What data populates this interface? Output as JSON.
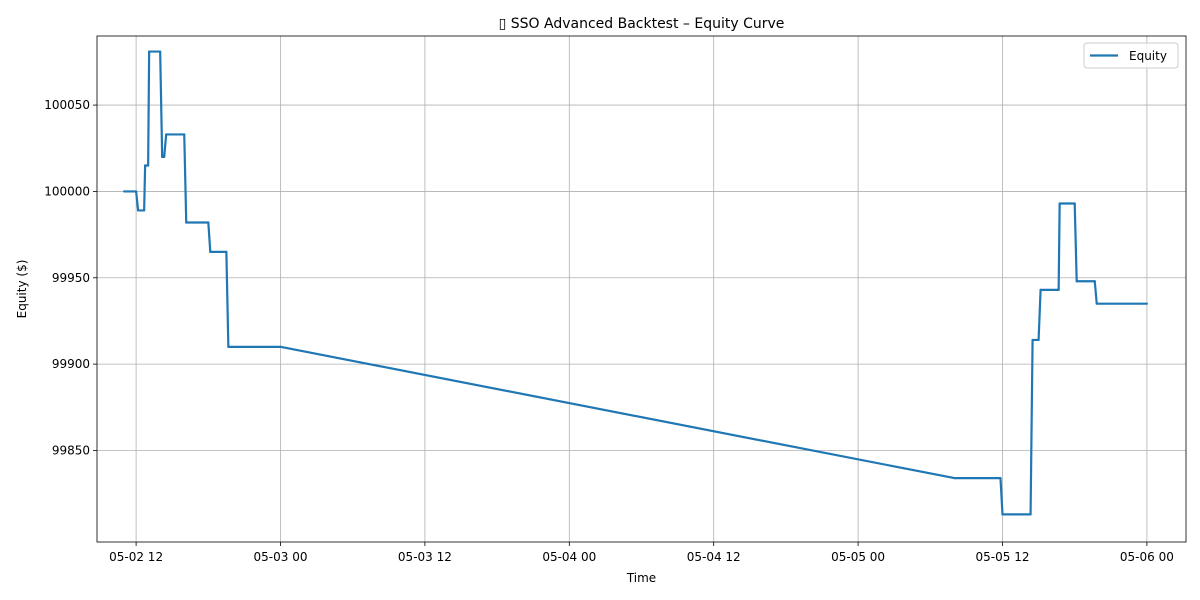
{
  "chart_data": {
    "type": "line",
    "title": "▯ SSO Advanced Backtest – Equity Curve",
    "xlabel": "Time",
    "ylabel": "Equity ($)",
    "grid": true,
    "legend_position": "top-right",
    "xlim": [
      "2025-05-02 08:45",
      "2025-05-06 03:15"
    ],
    "ylim": [
      99797,
      100090
    ],
    "x_ticks": [
      {
        "value": "2025-05-02 12:00",
        "label": "05-02 12"
      },
      {
        "value": "2025-05-03 00:00",
        "label": "05-03 00"
      },
      {
        "value": "2025-05-03 12:00",
        "label": "05-03 12"
      },
      {
        "value": "2025-05-04 00:00",
        "label": "05-04 00"
      },
      {
        "value": "2025-05-04 12:00",
        "label": "05-04 12"
      },
      {
        "value": "2025-05-05 00:00",
        "label": "05-05 00"
      },
      {
        "value": "2025-05-05 12:00",
        "label": "05-05 12"
      },
      {
        "value": "2025-05-06 00:00",
        "label": "05-06 00"
      }
    ],
    "y_ticks": [
      {
        "value": 99850,
        "label": "99850"
      },
      {
        "value": 99900,
        "label": "99900"
      },
      {
        "value": 99950,
        "label": "99950"
      },
      {
        "value": 100000,
        "label": "100000"
      },
      {
        "value": 100050,
        "label": "100050"
      }
    ],
    "series": [
      {
        "name": "Equity",
        "color": "#1f77b4",
        "points": [
          {
            "x": "2025-05-02 11:00",
            "y": 100000
          },
          {
            "x": "2025-05-02 12:00",
            "y": 100000
          },
          {
            "x": "2025-05-02 12:10",
            "y": 99989
          },
          {
            "x": "2025-05-02 12:40",
            "y": 99989
          },
          {
            "x": "2025-05-02 12:45",
            "y": 100015
          },
          {
            "x": "2025-05-02 13:00",
            "y": 100015
          },
          {
            "x": "2025-05-02 13:05",
            "y": 100081
          },
          {
            "x": "2025-05-02 14:00",
            "y": 100081
          },
          {
            "x": "2025-05-02 14:10",
            "y": 100020
          },
          {
            "x": "2025-05-02 14:20",
            "y": 100020
          },
          {
            "x": "2025-05-02 14:30",
            "y": 100033
          },
          {
            "x": "2025-05-02 16:00",
            "y": 100033
          },
          {
            "x": "2025-05-02 16:10",
            "y": 99982
          },
          {
            "x": "2025-05-02 18:00",
            "y": 99982
          },
          {
            "x": "2025-05-02 18:10",
            "y": 99965
          },
          {
            "x": "2025-05-02 19:30",
            "y": 99965
          },
          {
            "x": "2025-05-02 19:40",
            "y": 99910
          },
          {
            "x": "2025-05-03 00:00",
            "y": 99910
          },
          {
            "x": "2025-05-05 08:00",
            "y": 99834
          },
          {
            "x": "2025-05-05 11:50",
            "y": 99834
          },
          {
            "x": "2025-05-05 12:00",
            "y": 99813
          },
          {
            "x": "2025-05-05 14:20",
            "y": 99813
          },
          {
            "x": "2025-05-05 14:30",
            "y": 99914
          },
          {
            "x": "2025-05-05 15:00",
            "y": 99914
          },
          {
            "x": "2025-05-05 15:10",
            "y": 99943
          },
          {
            "x": "2025-05-05 16:40",
            "y": 99943
          },
          {
            "x": "2025-05-05 16:45",
            "y": 99993
          },
          {
            "x": "2025-05-05 18:00",
            "y": 99993
          },
          {
            "x": "2025-05-05 18:10",
            "y": 99948
          },
          {
            "x": "2025-05-05 19:40",
            "y": 99948
          },
          {
            "x": "2025-05-05 19:50",
            "y": 99935
          },
          {
            "x": "2025-05-06 00:00",
            "y": 99935
          }
        ]
      }
    ]
  }
}
